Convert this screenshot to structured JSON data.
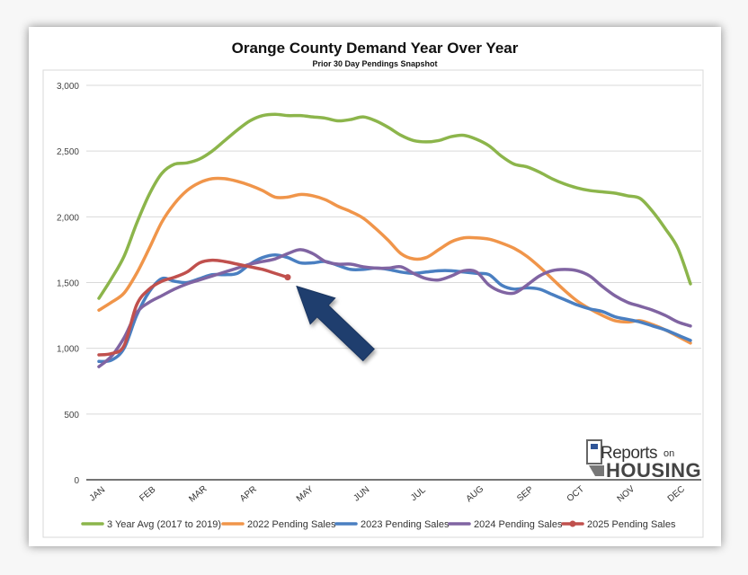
{
  "chart_data": {
    "type": "line",
    "title": "Orange County Demand Year Over Year",
    "subtitle": "Prior 30 Day Pendings Snapshot",
    "xlabel": "",
    "ylabel": "",
    "ylim": [
      0,
      3000
    ],
    "y_ticks": [
      0,
      500,
      1000,
      1500,
      2000,
      2500,
      3000
    ],
    "y_tick_labels": [
      "0",
      "500",
      "1,000",
      "1,500",
      "2,000",
      "2,500",
      "3,000"
    ],
    "categories": [
      "JAN",
      "FEB",
      "MAR",
      "APR",
      "MAY",
      "JUN",
      "JUL",
      "AUG",
      "SEP",
      "OCT",
      "NOV",
      "DEC"
    ],
    "category_positions": [
      1,
      5,
      9,
      13,
      17.5,
      22,
      26.5,
      31,
      35,
      39,
      43,
      47
    ],
    "x_range": [
      1,
      48
    ],
    "grid": "horizontal",
    "legend_position": "bottom",
    "series": [
      {
        "name": "3 Year Avg (2017 to 2019)",
        "color": "#8CB54B",
        "x": [
          1,
          2,
          3,
          4,
          5,
          6,
          7,
          8,
          9,
          10,
          11,
          12,
          13,
          14,
          15,
          16,
          17,
          18,
          19,
          20,
          21,
          22,
          23,
          24,
          25,
          26,
          27,
          28,
          29,
          30,
          31,
          32,
          33,
          34,
          35,
          36,
          37,
          38,
          39,
          40,
          41,
          42,
          43,
          44,
          45,
          46,
          47,
          48
        ],
        "values": [
          1380,
          1530,
          1700,
          1950,
          2170,
          2330,
          2400,
          2410,
          2440,
          2500,
          2580,
          2660,
          2730,
          2770,
          2780,
          2770,
          2770,
          2760,
          2750,
          2730,
          2740,
          2760,
          2730,
          2680,
          2620,
          2580,
          2570,
          2580,
          2610,
          2620,
          2590,
          2540,
          2460,
          2400,
          2380,
          2340,
          2290,
          2250,
          2220,
          2200,
          2190,
          2180,
          2160,
          2140,
          2040,
          1910,
          1760,
          1490
        ]
      },
      {
        "name": "2022 Pending Sales",
        "color": "#F0954A",
        "x": [
          1,
          2,
          3,
          4,
          5,
          6,
          7,
          8,
          9,
          10,
          11,
          12,
          13,
          14,
          15,
          16,
          17,
          18,
          19,
          20,
          21,
          22,
          23,
          24,
          25,
          26,
          27,
          28,
          29,
          30,
          31,
          32,
          33,
          34,
          35,
          36,
          37,
          38,
          39,
          40,
          41,
          42,
          43,
          44,
          45,
          46,
          47,
          48
        ],
        "values": [
          1290,
          1350,
          1420,
          1570,
          1760,
          1960,
          2100,
          2200,
          2260,
          2290,
          2290,
          2270,
          2240,
          2200,
          2150,
          2150,
          2170,
          2160,
          2130,
          2080,
          2040,
          1990,
          1910,
          1820,
          1720,
          1680,
          1690,
          1750,
          1810,
          1840,
          1840,
          1830,
          1800,
          1760,
          1700,
          1620,
          1530,
          1440,
          1360,
          1300,
          1250,
          1210,
          1200,
          1210,
          1180,
          1140,
          1090,
          1040
        ]
      },
      {
        "name": "2023 Pending Sales",
        "color": "#4A7FC1",
        "x": [
          1,
          2,
          3,
          4,
          5,
          6,
          7,
          8,
          9,
          10,
          11,
          12,
          13,
          14,
          15,
          16,
          17,
          18,
          19,
          20,
          21,
          22,
          23,
          24,
          25,
          26,
          27,
          28,
          29,
          30,
          31,
          32,
          33,
          34,
          35,
          36,
          37,
          38,
          39,
          40,
          41,
          42,
          43,
          44,
          45,
          46,
          47,
          48
        ],
        "values": [
          900,
          910,
          1000,
          1250,
          1430,
          1530,
          1510,
          1500,
          1530,
          1560,
          1560,
          1570,
          1640,
          1690,
          1710,
          1690,
          1650,
          1650,
          1660,
          1630,
          1600,
          1600,
          1610,
          1600,
          1580,
          1570,
          1580,
          1590,
          1590,
          1580,
          1570,
          1560,
          1480,
          1450,
          1460,
          1450,
          1410,
          1370,
          1330,
          1300,
          1280,
          1240,
          1220,
          1200,
          1170,
          1140,
          1100,
          1060
        ]
      },
      {
        "name": "2024 Pending Sales",
        "color": "#8064A2",
        "x": [
          1,
          2,
          3,
          4,
          5,
          6,
          7,
          8,
          9,
          10,
          11,
          12,
          13,
          14,
          15,
          16,
          17,
          18,
          19,
          20,
          21,
          22,
          23,
          24,
          25,
          26,
          27,
          28,
          29,
          30,
          31,
          32,
          33,
          34,
          35,
          36,
          37,
          38,
          39,
          40,
          41,
          42,
          43,
          44,
          45,
          46,
          47,
          48
        ],
        "values": [
          860,
          940,
          1080,
          1270,
          1350,
          1400,
          1450,
          1490,
          1520,
          1550,
          1580,
          1610,
          1640,
          1660,
          1680,
          1720,
          1750,
          1720,
          1660,
          1640,
          1640,
          1620,
          1610,
          1610,
          1620,
          1570,
          1530,
          1520,
          1550,
          1590,
          1580,
          1480,
          1430,
          1420,
          1480,
          1550,
          1590,
          1600,
          1590,
          1550,
          1470,
          1400,
          1350,
          1320,
          1290,
          1250,
          1200,
          1170
        ]
      },
      {
        "name": "2025 Pending Sales",
        "color": "#C0504D",
        "x": [
          1,
          2,
          3,
          4,
          5,
          6,
          7,
          8,
          9,
          10,
          11,
          12,
          13,
          14,
          15,
          16
        ],
        "values": [
          950,
          960,
          1020,
          1330,
          1450,
          1510,
          1540,
          1580,
          1650,
          1670,
          1660,
          1640,
          1620,
          1600,
          1570,
          1540
        ],
        "end_marker": true
      }
    ],
    "annotation": {
      "type": "arrow",
      "points_to_series": "2025 Pending Sales",
      "color": "#1F3E6E"
    }
  },
  "logo": {
    "text_top": "Reports",
    "text_on": "on",
    "text_bottom": "HOUSING"
  }
}
